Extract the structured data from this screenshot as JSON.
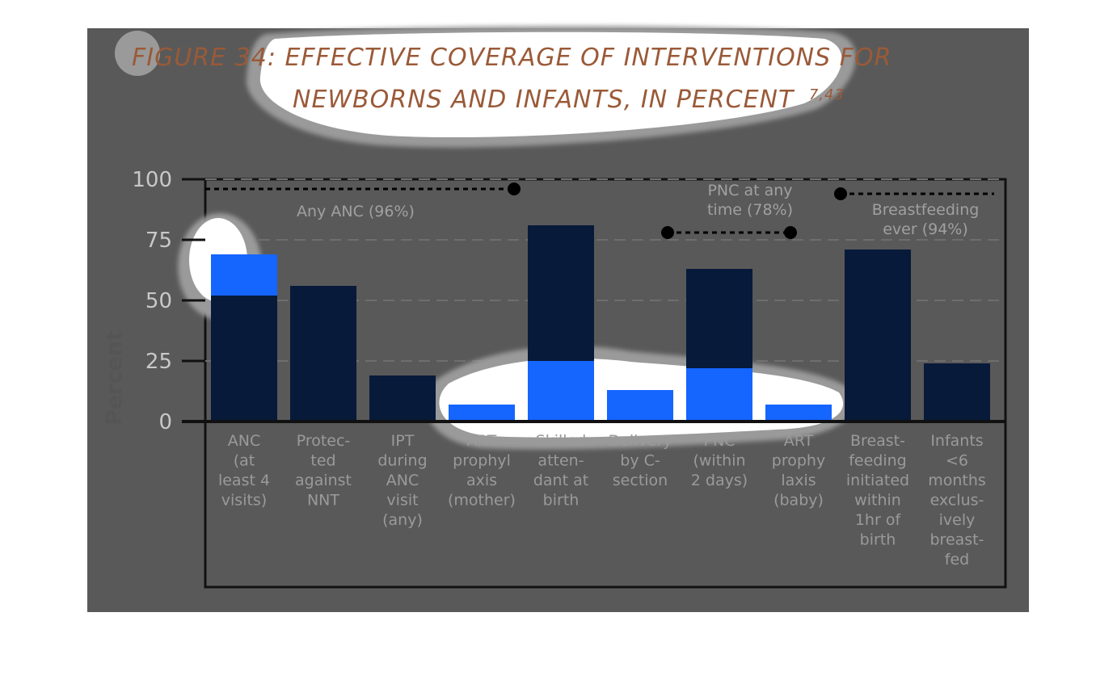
{
  "chart_data": {
    "type": "bar",
    "title": "FIGURE 34: EFFECTIVE COVERAGE OF INTERVENTIONS FOR NEWBORNS AND INFANTS, IN PERCENT",
    "title_lines": [
      "FIGURE 34: EFFECTIVE COVERAGE OF INTERVENTIONS FOR",
      "NEWBORNS AND INFANTS, IN PERCENT"
    ],
    "title_superscript": "7,43",
    "ylabel": "Percent",
    "xlabel": "",
    "ylim": [
      0,
      100
    ],
    "yticks": [
      "0",
      "25",
      "50",
      "75",
      "100"
    ],
    "grid": true,
    "categories": [
      "ANC (at least 4 visits)",
      "Protected against NNT",
      "IPT during ANC visit (any)",
      "ART prophylaxis (mother)",
      "Skilled attendant at birth",
      "Delivery by C-section",
      "PNC (within 2 days)",
      "ART prophylaxis (baby)",
      "Breastfeeding initiated within 1hr of birth",
      "Infants <6 months exclusively breastfed"
    ],
    "category_label_lines": [
      [
        "ANC",
        "(at",
        "least 4",
        "visits)"
      ],
      [
        "Protec-",
        "ted",
        "against",
        "NNT"
      ],
      [
        "IPT",
        "during",
        "ANC",
        "visit",
        "(any)"
      ],
      [
        "ART",
        "prophyl",
        "axis",
        "(mother)"
      ],
      [
        "Skilled",
        "atten-",
        "dant at",
        "birth"
      ],
      [
        "Delivery",
        "by C-",
        "section"
      ],
      [
        "PNC",
        "(within",
        "2 days)"
      ],
      [
        "ART",
        "prophy",
        "laxis",
        "(baby)"
      ],
      [
        "Breast-",
        "feeding",
        "initiated",
        "within",
        "1hr of",
        "birth"
      ],
      [
        "Infants",
        "<6",
        "months",
        "exclus-",
        "ively",
        "breast-",
        "fed"
      ]
    ],
    "values": [
      69,
      56,
      19,
      7,
      81,
      13,
      63,
      7,
      71,
      24
    ],
    "reference_lines": [
      {
        "label_lines": [
          "Any ANC (96%)"
        ],
        "value": 96,
        "from_category": 0,
        "to_category": 3
      },
      {
        "label_lines": [
          "PNC at any",
          "time (78%)"
        ],
        "value": 78,
        "from_category": 5,
        "to_category": 7
      },
      {
        "label_lines": [
          "Breastfeeding",
          "ever (94%)"
        ],
        "value": 94,
        "from_category": 8,
        "to_category": 9
      }
    ],
    "bar_color": "#071a3a",
    "highlight_color": "#1565ff"
  }
}
